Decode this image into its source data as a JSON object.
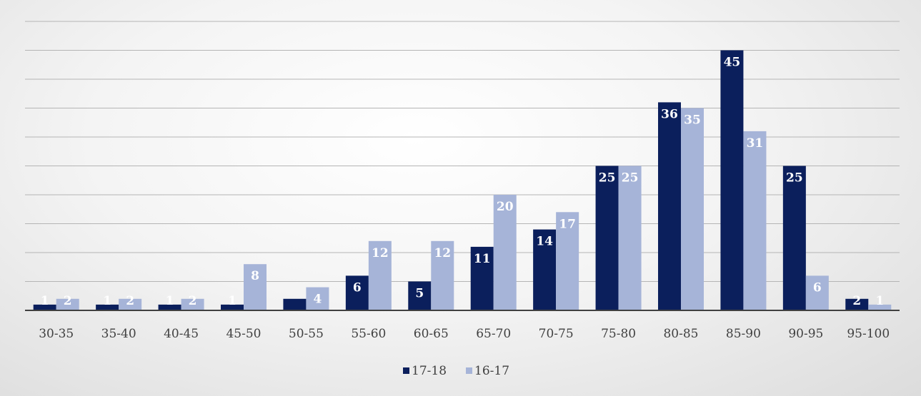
{
  "chart_data": {
    "type": "bar",
    "categories": [
      "30-35",
      "35-40",
      "40-45",
      "45-50",
      "50-55",
      "55-60",
      "60-65",
      "65-70",
      "70-75",
      "75-80",
      "80-85",
      "85-90",
      "90-95",
      "95-100"
    ],
    "series": [
      {
        "name": "17-18",
        "color": "#0b1f5c",
        "values": [
          1,
          1,
          1,
          1,
          2,
          6,
          5,
          11,
          14,
          25,
          36,
          45,
          25,
          2
        ],
        "labels": [
          "1",
          "1",
          "1",
          "1",
          "",
          "6",
          "5",
          "11",
          "14",
          "25",
          "36",
          "45",
          "25",
          "2"
        ]
      },
      {
        "name": "16-17",
        "color": "#a6b4d8",
        "values": [
          2,
          2,
          2,
          8,
          4,
          12,
          12,
          20,
          17,
          25,
          35,
          31,
          6,
          1
        ],
        "labels": [
          "2",
          "2",
          "2",
          "8",
          "4",
          "12",
          "12",
          "20",
          "17",
          "25",
          "35",
          "31",
          "6",
          "1"
        ]
      }
    ],
    "ylim": [
      0,
      50
    ],
    "gridlines": true,
    "ytick_labels_shown": false,
    "legend_position": "bottom-center",
    "title": "",
    "xlabel": "",
    "ylabel": ""
  }
}
